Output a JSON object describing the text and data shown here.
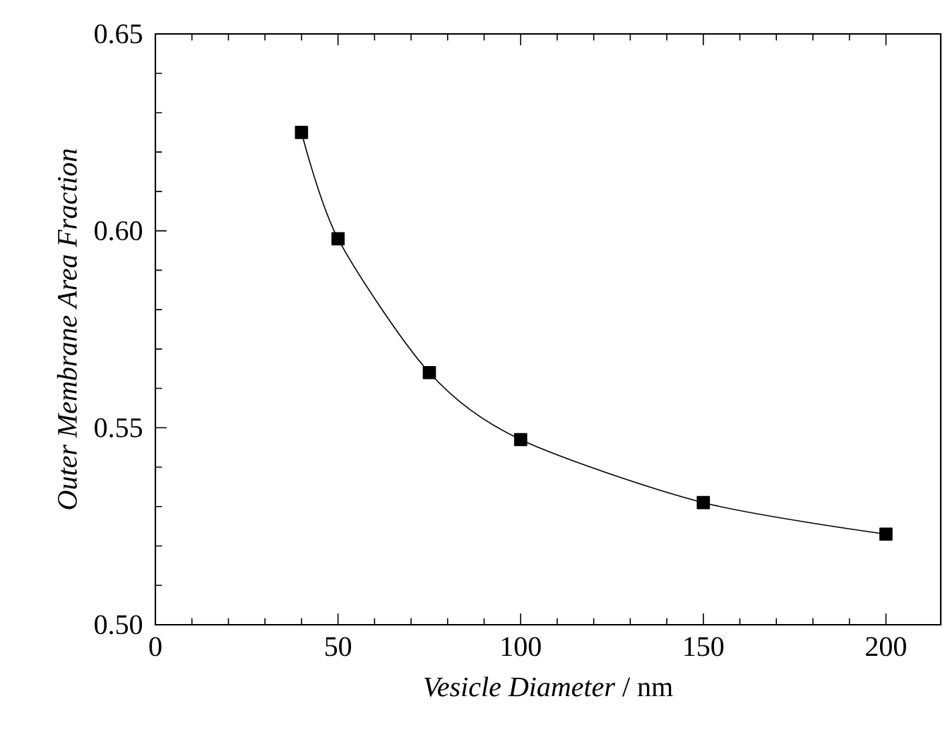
{
  "chart_data": {
    "type": "line",
    "xlabel": "*Vesicle Diameter* / nm",
    "ylabel": "Outer Membrane Area Fraction",
    "x": [
      40,
      50,
      75,
      100,
      150,
      200
    ],
    "series": [
      {
        "color": "#000000",
        "values": [
          0.625,
          0.598,
          0.564,
          0.547,
          0.531,
          0.523
        ]
      }
    ],
    "marker": "square",
    "line_style": "solid",
    "xlim": [
      0,
      215
    ],
    "ylim": [
      0.5,
      0.65
    ],
    "xticks": [
      0,
      50,
      100,
      150,
      200
    ],
    "yticks": [
      {
        "value": 0.5,
        "label": "0.50"
      },
      {
        "value": 0.55,
        "label": "0.55"
      },
      {
        "value": 0.6,
        "label": "0.60"
      },
      {
        "value": 0.65,
        "label": "0.65"
      }
    ],
    "grid": false
  }
}
